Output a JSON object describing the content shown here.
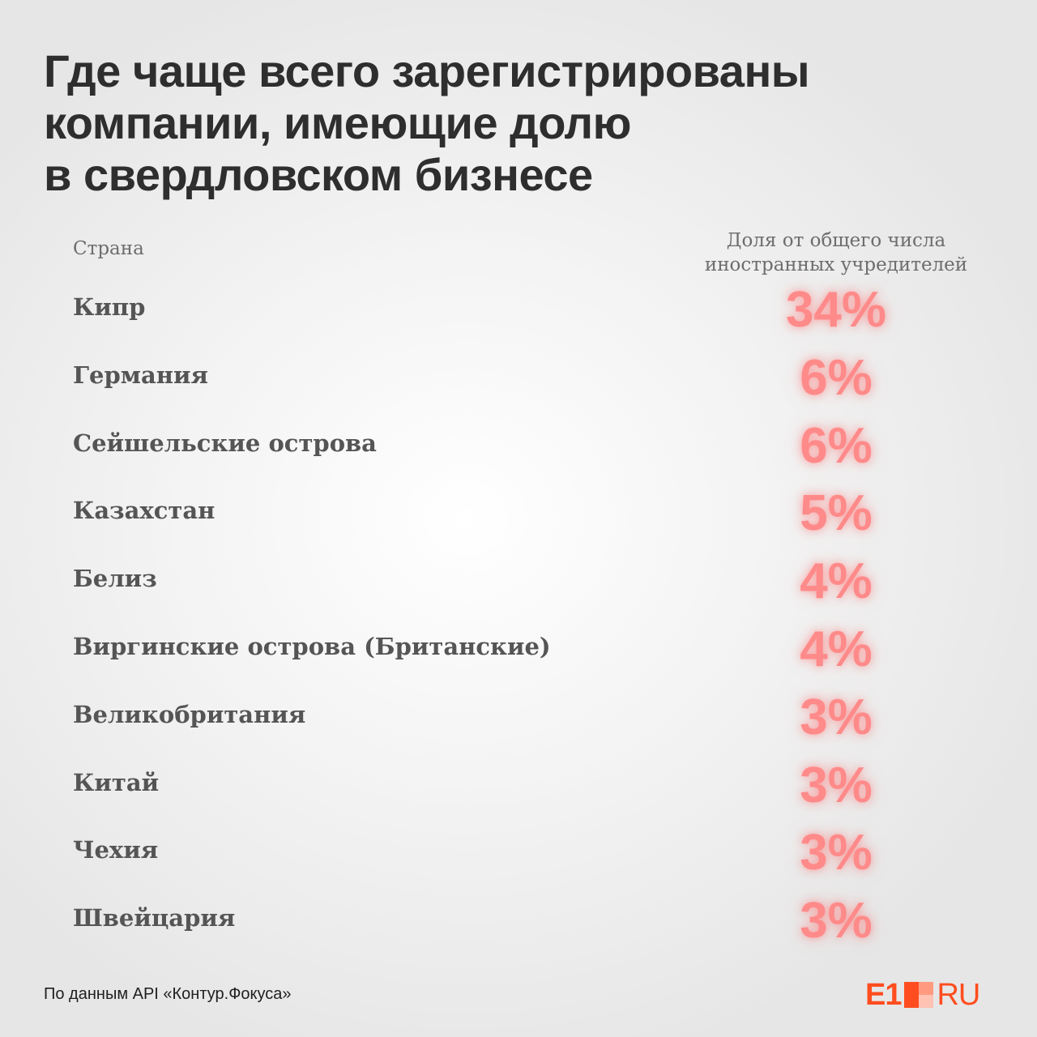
{
  "title_lines": [
    "Где чаще всего зарегистрированы",
    "компании, имеющие долю",
    "в свердловском бизнесе"
  ],
  "columns": {
    "country": "Страна",
    "share_lines": [
      "Доля от общего числа",
      "иностранных учредителей"
    ]
  },
  "chart_data": {
    "type": "table",
    "categories": [
      "Кипр",
      "Германия",
      "Сейшельские острова",
      "Казахстан",
      "Белиз",
      "Виргинские острова (Британские)",
      "Великобритания",
      "Китай",
      "Чехия",
      "Швейцария"
    ],
    "values": [
      34,
      6,
      6,
      5,
      4,
      4,
      3,
      3,
      3,
      3
    ],
    "value_labels": [
      "34%",
      "6%",
      "6%",
      "5%",
      "4%",
      "4%",
      "3%",
      "3%",
      "3%",
      "3%"
    ],
    "unit": "%"
  },
  "source": "По данным API «Контур.Фокуса»",
  "logo": {
    "e1": "E1",
    "ru": "RU"
  },
  "colors": {
    "value": "#ff8a8a",
    "brand": "#ff4d1f",
    "text": "#2e2e2e"
  }
}
